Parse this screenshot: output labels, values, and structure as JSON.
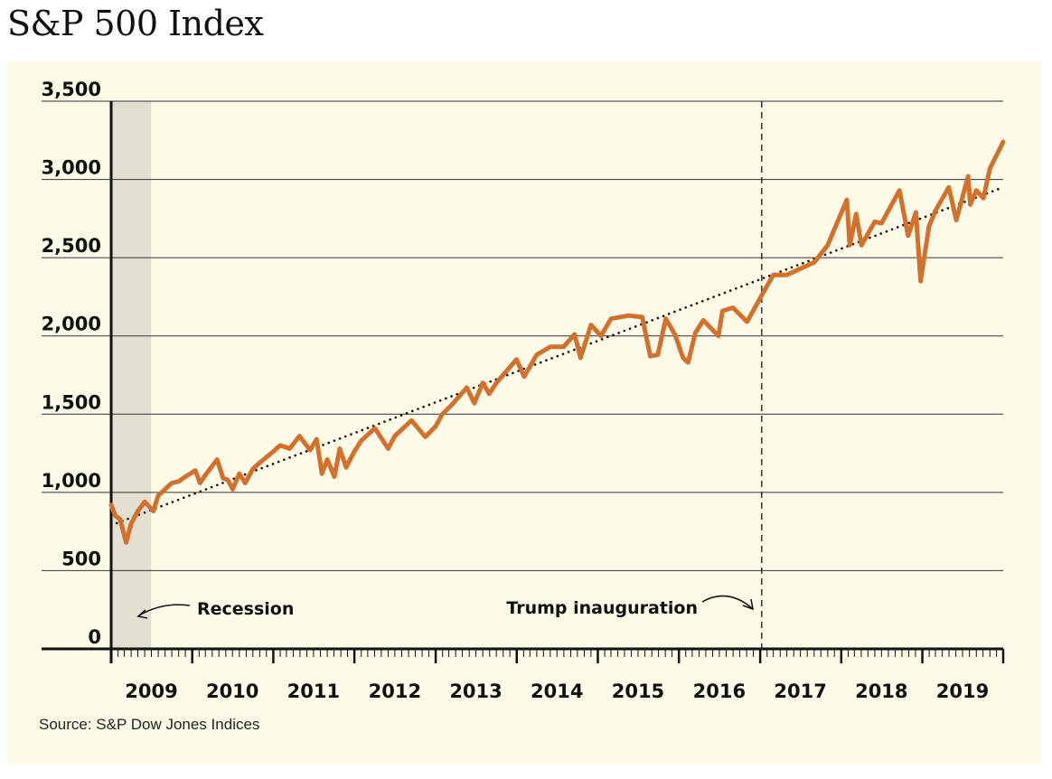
{
  "title": "S&P 500 Index",
  "source": "Source: S&P Dow Jones Indices",
  "colors": {
    "line": "#d2702c",
    "background": "#fdfbe7",
    "recession": "#e3e0d2",
    "grid": "#333333"
  },
  "chart_data": {
    "type": "line",
    "title": "S&P 500 Index",
    "xlabel": "",
    "ylabel": "",
    "ylim": [
      0,
      3500
    ],
    "xlim": [
      "2009-01-01",
      "2019-12-31"
    ],
    "yticks": [
      "0",
      "500",
      "1,000",
      "1,500",
      "2,000",
      "2,500",
      "3,000",
      "3,500"
    ],
    "xticks": [
      "2009",
      "2010",
      "2011",
      "2012",
      "2013",
      "2014",
      "2015",
      "2016",
      "2017",
      "2018",
      "2019"
    ],
    "grid": true,
    "series": [
      {
        "values": [
          [
            "2009-01-01",
            920
          ],
          [
            "2009-01-20",
            850
          ],
          [
            "2009-02-10",
            830
          ],
          [
            "2009-03-09",
            680
          ],
          [
            "2009-04-01",
            800
          ],
          [
            "2009-05-01",
            880
          ],
          [
            "2009-06-01",
            940
          ],
          [
            "2009-07-10",
            880
          ],
          [
            "2009-08-01",
            980
          ],
          [
            "2009-09-01",
            1020
          ],
          [
            "2009-10-01",
            1060
          ],
          [
            "2009-11-01",
            1070
          ],
          [
            "2009-12-01",
            1100
          ],
          [
            "2010-01-15",
            1140
          ],
          [
            "2010-02-05",
            1060
          ],
          [
            "2010-03-01",
            1110
          ],
          [
            "2010-04-23",
            1210
          ],
          [
            "2010-05-20",
            1090
          ],
          [
            "2010-06-10",
            1080
          ],
          [
            "2010-07-02",
            1020
          ],
          [
            "2010-08-01",
            1120
          ],
          [
            "2010-08-27",
            1060
          ],
          [
            "2010-10-01",
            1150
          ],
          [
            "2010-11-01",
            1190
          ],
          [
            "2010-12-31",
            1260
          ],
          [
            "2011-02-01",
            1300
          ],
          [
            "2011-03-15",
            1280
          ],
          [
            "2011-04-29",
            1360
          ],
          [
            "2011-06-15",
            1270
          ],
          [
            "2011-07-15",
            1340
          ],
          [
            "2011-08-08",
            1120
          ],
          [
            "2011-09-01",
            1210
          ],
          [
            "2011-10-03",
            1100
          ],
          [
            "2011-10-27",
            1280
          ],
          [
            "2011-11-25",
            1160
          ],
          [
            "2011-12-31",
            1260
          ],
          [
            "2012-02-01",
            1330
          ],
          [
            "2012-04-02",
            1410
          ],
          [
            "2012-06-01",
            1280
          ],
          [
            "2012-07-01",
            1360
          ],
          [
            "2012-09-14",
            1460
          ],
          [
            "2012-11-15",
            1355
          ],
          [
            "2012-12-31",
            1420
          ],
          [
            "2013-01-31",
            1500
          ],
          [
            "2013-03-15",
            1560
          ],
          [
            "2013-05-21",
            1670
          ],
          [
            "2013-06-24",
            1570
          ],
          [
            "2013-08-01",
            1700
          ],
          [
            "2013-08-30",
            1630
          ],
          [
            "2013-10-01",
            1700
          ],
          [
            "2013-12-31",
            1850
          ],
          [
            "2014-02-03",
            1740
          ],
          [
            "2014-04-01",
            1880
          ],
          [
            "2014-06-01",
            1930
          ],
          [
            "2014-07-31",
            1930
          ],
          [
            "2014-09-18",
            2010
          ],
          [
            "2014-10-15",
            1860
          ],
          [
            "2014-12-01",
            2070
          ],
          [
            "2015-01-15",
            2000
          ],
          [
            "2015-03-01",
            2110
          ],
          [
            "2015-05-20",
            2130
          ],
          [
            "2015-07-20",
            2120
          ],
          [
            "2015-08-25",
            1870
          ],
          [
            "2015-09-28",
            1880
          ],
          [
            "2015-11-03",
            2110
          ],
          [
            "2015-12-14",
            2010
          ],
          [
            "2016-01-20",
            1860
          ],
          [
            "2016-02-11",
            1830
          ],
          [
            "2016-03-15",
            2020
          ],
          [
            "2016-04-20",
            2100
          ],
          [
            "2016-06-27",
            2000
          ],
          [
            "2016-07-15",
            2160
          ],
          [
            "2016-09-01",
            2180
          ],
          [
            "2016-11-03",
            2090
          ],
          [
            "2016-12-31",
            2240
          ],
          [
            "2017-03-01",
            2390
          ],
          [
            "2017-05-01",
            2390
          ],
          [
            "2017-07-01",
            2430
          ],
          [
            "2017-09-01",
            2470
          ],
          [
            "2017-11-01",
            2580
          ],
          [
            "2018-01-26",
            2870
          ],
          [
            "2018-02-08",
            2580
          ],
          [
            "2018-03-09",
            2780
          ],
          [
            "2018-04-02",
            2580
          ],
          [
            "2018-06-01",
            2730
          ],
          [
            "2018-07-01",
            2720
          ],
          [
            "2018-09-20",
            2930
          ],
          [
            "2018-10-29",
            2640
          ],
          [
            "2018-12-03",
            2790
          ],
          [
            "2018-12-24",
            2350
          ],
          [
            "2019-01-31",
            2700
          ],
          [
            "2019-03-01",
            2800
          ],
          [
            "2019-04-30",
            2950
          ],
          [
            "2019-06-03",
            2740
          ],
          [
            "2019-07-26",
            3020
          ],
          [
            "2019-08-05",
            2840
          ],
          [
            "2019-09-01",
            2930
          ],
          [
            "2019-10-03",
            2880
          ],
          [
            "2019-11-01",
            3070
          ],
          [
            "2019-12-31",
            3240
          ]
        ]
      }
    ],
    "trendline": {
      "style": "dotted",
      "from": [
        "2009-01-01",
        790
      ],
      "to": [
        "2019-12-31",
        2950
      ]
    },
    "shaded_regions": [
      {
        "label": "Recession",
        "from": "2009-01-01",
        "to": "2009-06-30"
      }
    ],
    "events": [
      {
        "label": "Trump inauguration",
        "date": "2017-01-20",
        "style": "dashed"
      }
    ]
  }
}
